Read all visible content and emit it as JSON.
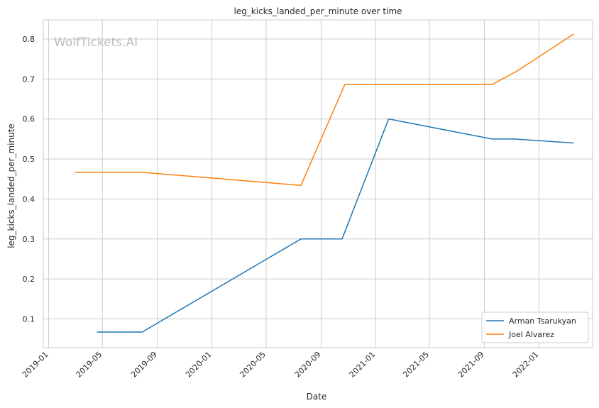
{
  "chart_data": {
    "type": "line",
    "title": "leg_kicks_landed_per_minute over time",
    "xlabel": "Date",
    "ylabel": "leg_kicks_landed_per_minute",
    "watermark": "WolfTickets.AI",
    "x_tick_labels": [
      "2019-01",
      "2019-05",
      "2019-09",
      "2020-01",
      "2020-05",
      "2020-09",
      "2021-01",
      "2021-05",
      "2021-09",
      "2022-01"
    ],
    "x_tick_dates": [
      "2019-01-01",
      "2019-05-01",
      "2019-09-01",
      "2020-01-01",
      "2020-05-01",
      "2020-09-01",
      "2021-01-01",
      "2021-05-01",
      "2021-09-01",
      "2022-01-01"
    ],
    "xlim": [
      "2018-12-20",
      "2022-05-01"
    ],
    "y_tick_labels": [
      "0.1",
      "0.2",
      "0.3",
      "0.4",
      "0.5",
      "0.6",
      "0.7",
      "0.8"
    ],
    "y_ticks": [
      0.1,
      0.2,
      0.3,
      0.4,
      0.5,
      0.6,
      0.7,
      0.8
    ],
    "ylim": [
      0.028,
      0.848
    ],
    "grid": true,
    "legend_position": "bottom-right",
    "series": [
      {
        "name": "Arman Tsarukyan",
        "color": "#1f77b4",
        "x": [
          "2019-04-20",
          "2019-07-29",
          "2020-07-18",
          "2020-10-18",
          "2021-01-30",
          "2021-09-18",
          "2021-11-06",
          "2022-03-19"
        ],
        "y": [
          0.067,
          0.067,
          0.3,
          0.3,
          0.6,
          0.55,
          0.55,
          0.54
        ]
      },
      {
        "name": "Joel Alvarez",
        "color": "#ff7f0e",
        "x": [
          "2019-03-02",
          "2019-07-27",
          "2020-07-18",
          "2020-10-24",
          "2021-09-18",
          "2021-11-13",
          "2022-03-19"
        ],
        "y": [
          0.467,
          0.467,
          0.434,
          0.686,
          0.686,
          0.72,
          0.812
        ]
      }
    ]
  }
}
